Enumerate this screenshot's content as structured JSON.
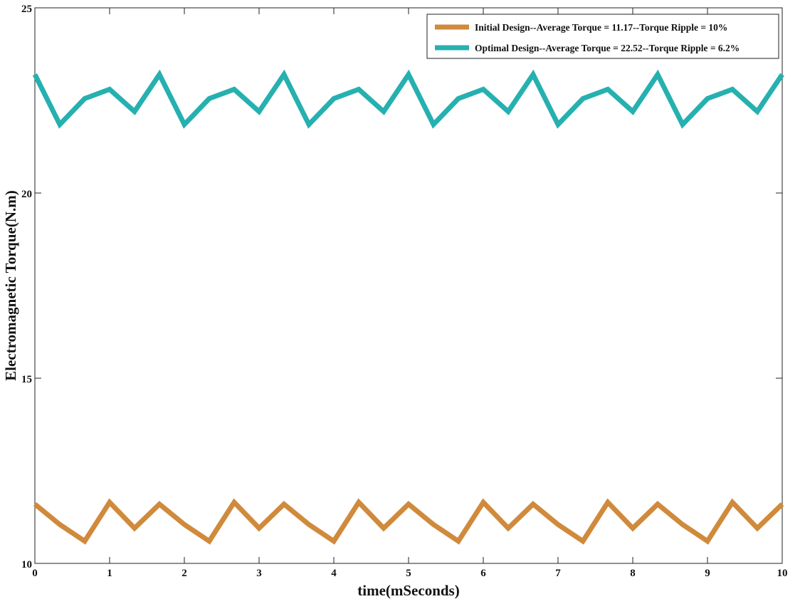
{
  "chart_data": {
    "type": "line",
    "title": "",
    "xlabel": "time(mSeconds)",
    "ylabel": "Electromagnetic Torque(N.m)",
    "xlim": [
      0,
      10
    ],
    "ylim": [
      10,
      25
    ],
    "xticks": [
      0,
      1,
      2,
      3,
      4,
      5,
      6,
      7,
      8,
      9,
      10
    ],
    "yticks": [
      10,
      15,
      20,
      25
    ],
    "grid": false,
    "legend_position": "top-right",
    "x": [
      0,
      0.333,
      0.667,
      1,
      1.333,
      1.667,
      2,
      2.333,
      2.667,
      3,
      3.333,
      3.667,
      4,
      4.333,
      4.667,
      5,
      5.333,
      5.667,
      6,
      6.333,
      6.667,
      7,
      7.333,
      7.667,
      8,
      8.333,
      8.667,
      9,
      9.333,
      9.667,
      10
    ],
    "series": [
      {
        "name": "Initial Design--Average Torque = 11.17--Torque Ripple = 10%",
        "color": "#d08a3c",
        "values": [
          11.6,
          11.05,
          10.6,
          11.65,
          10.95,
          11.6,
          11.05,
          10.6,
          11.65,
          10.95,
          11.6,
          11.05,
          10.6,
          11.65,
          10.95,
          11.6,
          11.05,
          10.6,
          11.65,
          10.95,
          11.6,
          11.05,
          10.6,
          11.65,
          10.95,
          11.6,
          11.05,
          10.6,
          11.65,
          10.95,
          11.6
        ]
      },
      {
        "name": "Optimal Design--Average Torque = 22.52--Torque Ripple = 6.2%",
        "color": "#26b0b0",
        "values": [
          23.2,
          21.85,
          22.55,
          22.8,
          22.2,
          23.2,
          21.85,
          22.55,
          22.8,
          22.2,
          23.2,
          21.85,
          22.55,
          22.8,
          22.2,
          23.2,
          21.85,
          22.55,
          22.8,
          22.2,
          23.2,
          21.85,
          22.55,
          22.8,
          22.2,
          23.2,
          21.85,
          22.55,
          22.8,
          22.2,
          23.2
        ]
      }
    ]
  }
}
